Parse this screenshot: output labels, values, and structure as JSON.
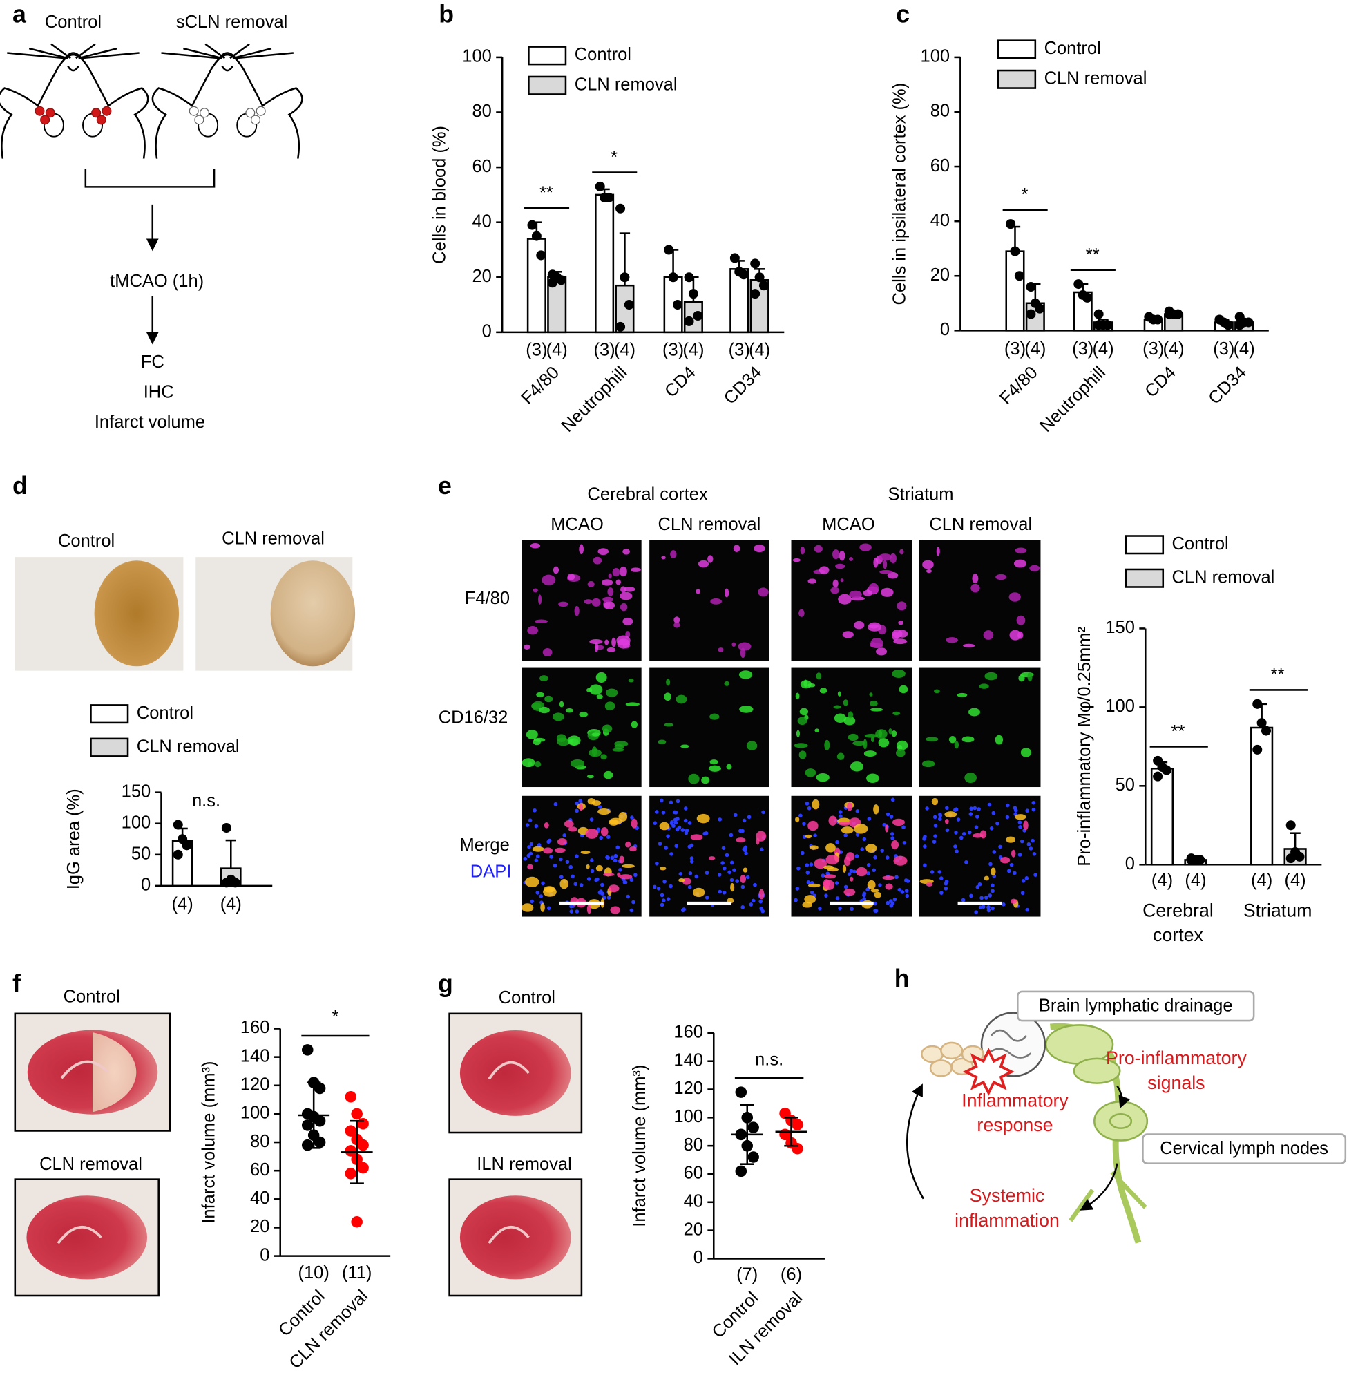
{
  "panel_a": {
    "label": "a",
    "groups": [
      "Control",
      "sCLN removal"
    ],
    "steps": [
      "tMCAO (1h)",
      "FC",
      "IHC",
      "Infarct volume"
    ]
  },
  "panel_d": {
    "images": [
      "Control",
      "CLN removal"
    ]
  },
  "panel_e": {
    "regions": [
      "Cerebral cortex",
      "Striatum"
    ],
    "columns": [
      "MCAO",
      "CLN removal",
      "MCAO",
      "CLN removal"
    ],
    "rows": [
      "F4/80",
      "CD16/32",
      "Merge"
    ],
    "stain": "DAPI"
  },
  "panel_f": {
    "images": [
      "Control",
      "CLN removal"
    ]
  },
  "panel_g": {
    "images": [
      "Control",
      "ILN removal"
    ]
  },
  "panel_h": {
    "label": "h",
    "boxes": [
      "Brain lymphatic drainage",
      "Cervical lymph nodes"
    ],
    "signals": [
      [
        "Pro-inflammatory",
        "signals"
      ],
      [
        "Inflammatory",
        "response"
      ],
      [
        "Systemic",
        "inflammation"
      ]
    ]
  },
  "chart_data": [
    {
      "type": "bar",
      "label": "b",
      "y_label": "Cells in blood (%)",
      "categories": [
        "F4/80",
        "Neutrophill",
        "CD4",
        "CD34"
      ],
      "annotations": [
        "**",
        "*",
        null,
        null
      ],
      "series": [
        {
          "name": "Control",
          "color": "#ffffff",
          "n_label": "(3)",
          "values": [
            34,
            50,
            20,
            23
          ],
          "errors": [
            6,
            2,
            10,
            3
          ],
          "points": [
            [
              39,
              35,
              28
            ],
            [
              53,
              49,
              49
            ],
            [
              30,
              20,
              10
            ],
            [
              27,
              22,
              21
            ]
          ]
        },
        {
          "name": "CLN removal",
          "color": "#d9d9d9",
          "n_label": "(4)",
          "values": [
            20,
            17,
            11,
            19
          ],
          "errors": [
            2,
            19,
            9,
            4
          ],
          "points": [
            [
              21,
              20,
              19,
              18
            ],
            [
              45,
              20,
              10,
              2
            ],
            [
              20,
              14,
              6,
              4
            ],
            [
              25,
              20,
              17,
              14
            ]
          ]
        }
      ],
      "ylim": [
        0,
        100
      ],
      "yticks": [
        0,
        20,
        40,
        60,
        80,
        100
      ]
    },
    {
      "type": "bar",
      "label": "c",
      "y_label": "Cells in ipsilateral cortex (%)",
      "categories": [
        "F4/80",
        "Neutrophill",
        "CD4",
        "CD34"
      ],
      "annotations": [
        "*",
        "**",
        null,
        null
      ],
      "series": [
        {
          "name": "Control",
          "color": "#ffffff",
          "n_label": "(3)",
          "values": [
            29,
            14,
            4,
            3
          ],
          "errors": [
            9,
            3,
            1,
            1
          ],
          "points": [
            [
              39,
              29,
              20
            ],
            [
              17,
              13,
              12
            ],
            [
              5,
              4,
              4
            ],
            [
              4,
              3,
              2
            ]
          ]
        },
        {
          "name": "CLN removal",
          "color": "#d9d9d9",
          "n_label": "(4)",
          "values": [
            10,
            3,
            6,
            3
          ],
          "errors": [
            7,
            1,
            1,
            1
          ],
          "points": [
            [
              16,
              10,
              8,
              6
            ],
            [
              6,
              2,
              2,
              2
            ],
            [
              7,
              6,
              6,
              6
            ],
            [
              5,
              3,
              3,
              2
            ]
          ]
        }
      ],
      "ylim": [
        0,
        100
      ],
      "yticks": [
        0,
        20,
        40,
        60,
        80,
        100
      ]
    },
    {
      "type": "bar",
      "label": "d",
      "y_label": "IgG area (%)",
      "annotations": [
        "n.s."
      ],
      "series": [
        {
          "name": "Control",
          "color": "#ffffff",
          "n_label": "(4)",
          "values": [
            72
          ],
          "errors": [
            20
          ],
          "points": [
            [
              98,
              75,
              65,
              50
            ]
          ]
        },
        {
          "name": "CLN removal",
          "color": "#d9d9d9",
          "n_label": "(4)",
          "values": [
            28
          ],
          "errors": [
            45
          ],
          "points": [
            [
              93,
              10,
              5,
              5
            ]
          ]
        }
      ],
      "ylim": [
        0,
        150
      ],
      "yticks": [
        0,
        50,
        100,
        150
      ]
    },
    {
      "type": "bar",
      "label": "e",
      "y_label": "Pro-inflammatory Mφ/0.25mm²",
      "categories": [
        "Cerebral cortex",
        "Striatum"
      ],
      "annotations": [
        "**",
        "**"
      ],
      "series": [
        {
          "name": "Control",
          "color": "#ffffff",
          "n_label": "(4)",
          "values": [
            61,
            87
          ],
          "errors": [
            4,
            15
          ],
          "points": [
            [
              66,
              62,
              60,
              56
            ],
            [
              102,
              90,
              85,
              73
            ]
          ]
        },
        {
          "name": "CLN removal",
          "color": "#d9d9d9",
          "n_label": "(4)",
          "values": [
            3,
            10
          ],
          "errors": [
            1,
            10
          ],
          "points": [
            [
              4,
              3,
              3,
              3
            ],
            [
              25,
              8,
              5,
              4
            ]
          ]
        }
      ],
      "ylim": [
        0,
        150
      ],
      "yticks": [
        0,
        50,
        100,
        150
      ]
    },
    {
      "type": "dot",
      "label": "f",
      "y_label": "Infarct volume (mm³)",
      "annotation": "*",
      "series": [
        {
          "name": "Control",
          "color": "#000000",
          "n_label": "(10)",
          "values": [
            145,
            122,
            118,
            100,
            98,
            95,
            92,
            85,
            80,
            78
          ],
          "mean": 99,
          "sd": 23
        },
        {
          "name": "CLN removal",
          "color": "#ff0000",
          "n_label": "(11)",
          "values": [
            112,
            100,
            93,
            88,
            82,
            78,
            74,
            68,
            62,
            58,
            24
          ],
          "mean": 73,
          "sd": 22
        }
      ],
      "ylim": [
        0,
        160
      ],
      "yticks": [
        0,
        20,
        40,
        60,
        80,
        100,
        120,
        140,
        160
      ]
    },
    {
      "type": "dot",
      "label": "g",
      "y_label": "Infarct volume (mm³)",
      "annotation": "n.s.",
      "series": [
        {
          "name": "Control",
          "color": "#000000",
          "n_label": "(7)",
          "values": [
            118,
            100,
            93,
            88,
            80,
            72,
            62
          ],
          "mean": 88,
          "sd": 21
        },
        {
          "name": "ILN removal",
          "color": "#ff0000",
          "n_label": "(6)",
          "values": [
            103,
            98,
            95,
            88,
            82,
            78
          ],
          "mean": 90,
          "sd": 10
        }
      ],
      "ylim": [
        0,
        160
      ],
      "yticks": [
        0,
        20,
        40,
        60,
        80,
        100,
        120,
        140,
        160
      ]
    }
  ]
}
